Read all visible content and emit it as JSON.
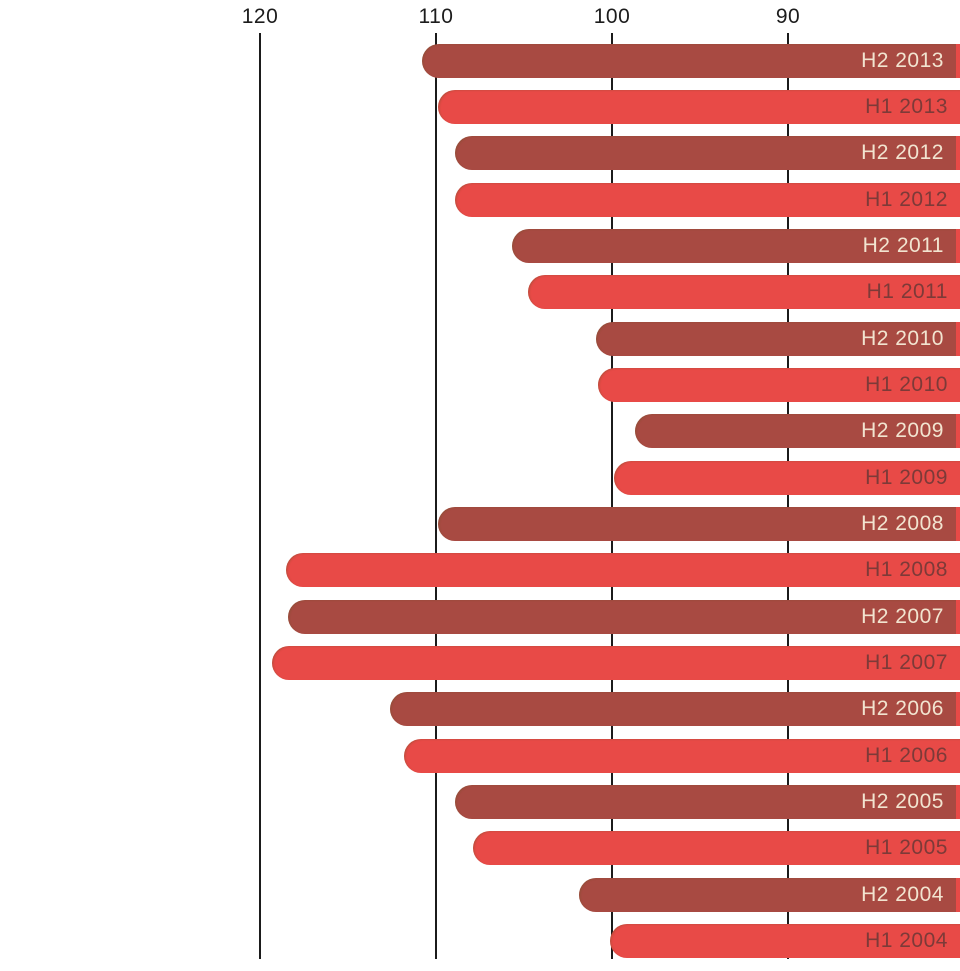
{
  "chart_data": {
    "type": "bar",
    "orientation": "horizontal",
    "title": "",
    "xlabel": "",
    "ylabel": "",
    "legend": "none",
    "grid": "vertical gridlines at ticks",
    "x_axis": {
      "ticks": [
        120,
        110,
        100,
        90
      ],
      "tick_labels": [
        "120",
        "110",
        "100",
        "90"
      ],
      "reversed": true,
      "position": "top"
    },
    "bar_label_position": "inside-right",
    "categories": [
      "H2 2013",
      "H1 2013",
      "H2 2012",
      "H1 2012",
      "H2 2011",
      "H1 2011",
      "H2 2010",
      "H1 2010",
      "H2 2009",
      "H1 2009",
      "H2 2008",
      "H1 2008",
      "H2 2007",
      "H1 2007",
      "H2 2006",
      "H1 2006",
      "H2 2005",
      "H1 2005",
      "H2 2004",
      "H1 2004"
    ],
    "values": [
      110.8,
      109.9,
      108.9,
      108.9,
      105.7,
      104.8,
      100.9,
      100.8,
      98.7,
      99.9,
      109.9,
      118.5,
      118.4,
      119.3,
      112.6,
      111.8,
      108.9,
      107.9,
      101.9,
      100.1
    ],
    "series_groups": [
      {
        "name": "H2 (second half)",
        "color": "#a84a42",
        "label_color": "#f2e4d0"
      },
      {
        "name": "H1 (first half)",
        "color": "#e84a47",
        "label_color": "#7d3a38"
      }
    ]
  },
  "colors": {
    "background": "#ffffff",
    "gridline": "#1b1b1b",
    "tick_text": "#1c1c1c",
    "h2_bar": "#a84a42",
    "h1_bar": "#e84a47",
    "h2_label_text": "#f2e4d0",
    "h1_label_text": "#7d3a38"
  }
}
